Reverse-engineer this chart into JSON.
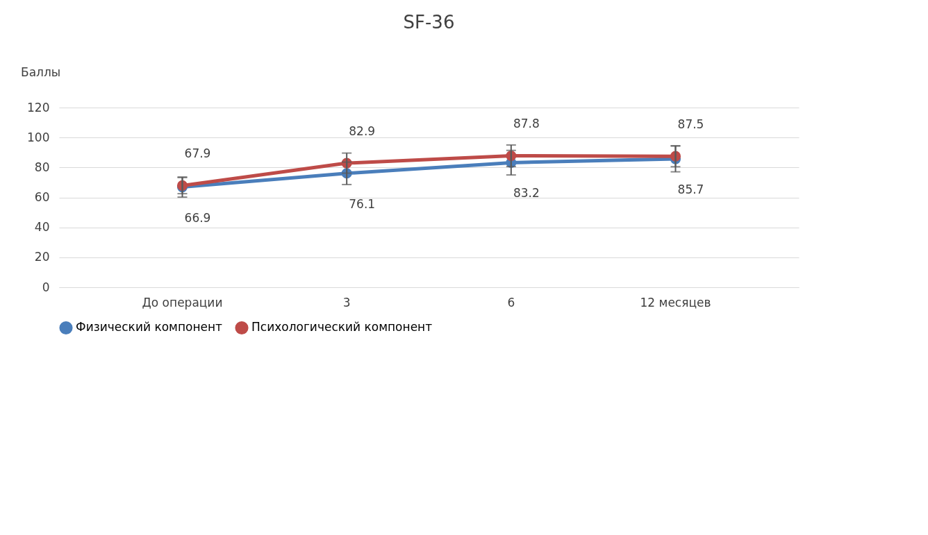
{
  "chart_data": {
    "type": "line",
    "title": "SF-36",
    "ylabel": "Баллы",
    "categories": [
      "До операции",
      "3",
      "6",
      "12 месяцев"
    ],
    "series": [
      {
        "name": "Физический компонент",
        "color": "#4a7ebb",
        "values": [
          66.9,
          76.1,
          83.2,
          85.7
        ],
        "errors": [
          6.7,
          7.5,
          8.2,
          8.6
        ]
      },
      {
        "name": "Психологический компонент",
        "color": "#be4b48",
        "values": [
          67.9,
          82.9,
          87.8,
          87.5
        ],
        "errors": [
          5.4,
          6.7,
          7.2,
          7.0
        ]
      }
    ],
    "ylim": [
      0,
      120
    ],
    "yticks": [
      0,
      20,
      40,
      60,
      80,
      100,
      120
    ],
    "grid": "y",
    "legend": "bottom",
    "marker": "circle",
    "line_style": "solid",
    "data_labels": true
  }
}
